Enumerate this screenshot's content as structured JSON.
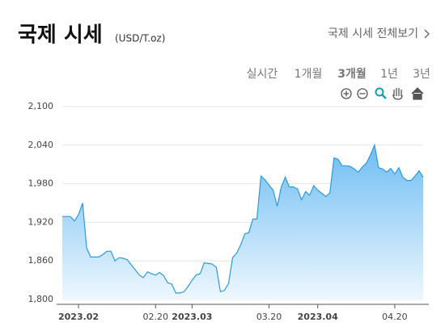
{
  "header": {
    "title": "국제 시세",
    "unit": "(USD/T.oz)",
    "link": "국제 시세 전체보기"
  },
  "tabs": {
    "items": [
      "실시간",
      "1개월",
      "3개월",
      "1년",
      "3년"
    ],
    "selected": 2
  },
  "chart_data": {
    "type": "area",
    "color": "#2b9be0",
    "categories": [
      null,
      null,
      null,
      null,
      "2023.02",
      null,
      null,
      null,
      null,
      null,
      null,
      null,
      null,
      null,
      null,
      null,
      null,
      null,
      null,
      null,
      null,
      null,
      null,
      "02.20",
      null,
      null,
      null,
      null,
      null,
      null,
      null,
      null,
      "2023.03",
      null,
      null,
      null,
      null,
      null,
      null,
      null,
      null,
      null,
      null,
      null,
      null,
      null,
      null,
      null,
      null,
      null,
      null,
      "03.20",
      null,
      null,
      null,
      null,
      null,
      null,
      null,
      null,
      null,
      null,
      null,
      "2023.04",
      null,
      null,
      null,
      null,
      null,
      null,
      null,
      null,
      null,
      null,
      null,
      null,
      null,
      null,
      null,
      null,
      null,
      null,
      "04.20",
      null,
      null,
      null,
      null,
      null,
      null,
      null
    ],
    "values": [
      1929,
      1929,
      1929,
      1922,
      1932,
      1950,
      1880,
      1866,
      1866,
      1866,
      1870,
      1875,
      1875,
      1860,
      1865,
      1864,
      1862,
      1854,
      1846,
      1838,
      1834,
      1843,
      1840,
      1838,
      1842,
      1837,
      1826,
      1824,
      1810,
      1810,
      1812,
      1820,
      1830,
      1838,
      1840,
      1857,
      1856,
      1855,
      1850,
      1812,
      1814,
      1825,
      1865,
      1872,
      1885,
      1902,
      1904,
      1925,
      1925,
      1992,
      1986,
      1978,
      1970,
      1945,
      1975,
      1990,
      1975,
      1975,
      1972,
      1955,
      1968,
      1962,
      1977,
      1970,
      1965,
      1960,
      1966,
      2020,
      2018,
      2008,
      2008,
      2007,
      2003,
      1998,
      2006,
      2012,
      2025,
      2040,
      2005,
      2003,
      1998,
      2004,
      1995,
      2005,
      1990,
      1985,
      1985,
      1992,
      2000,
      1990
    ],
    "ylim": [
      1800,
      2100
    ],
    "yticks": [
      {
        "value": 1800,
        "label": "1,800"
      },
      {
        "value": 1860,
        "label": "1,860"
      },
      {
        "value": 1920,
        "label": "1,920"
      },
      {
        "value": 1980,
        "label": "1,980"
      },
      {
        "value": 2040,
        "label": "2,040"
      },
      {
        "value": 2100,
        "label": "2,100"
      }
    ],
    "grid": true
  }
}
